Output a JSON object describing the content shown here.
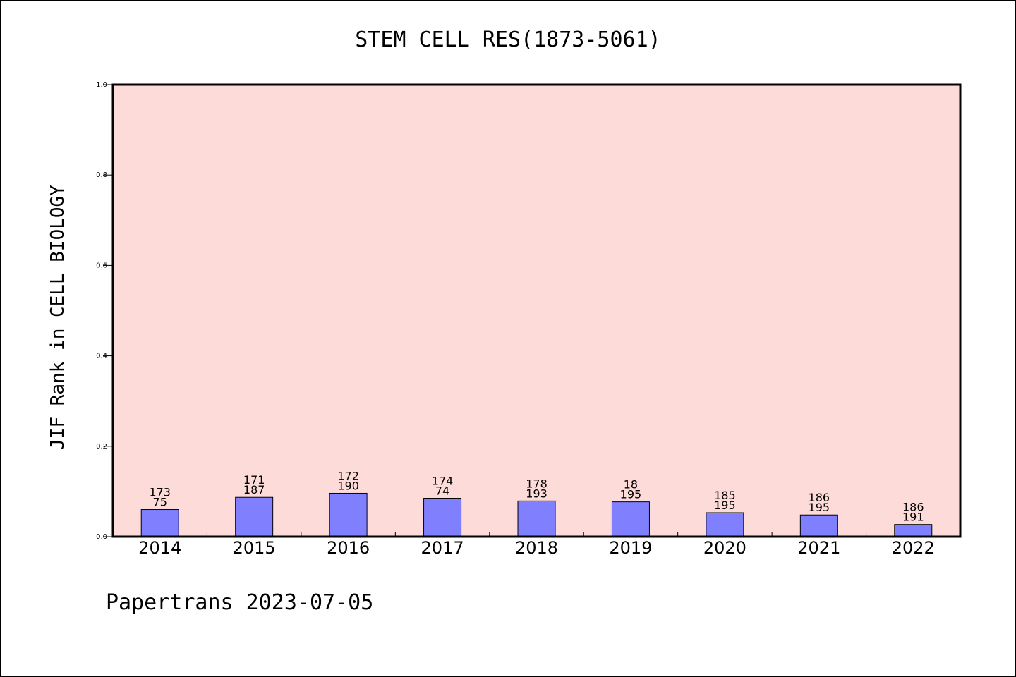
{
  "chart_data": {
    "type": "bar",
    "title": "STEM CELL RES(1873-5061)",
    "ylabel": "JIF Rank in CELL BIOLOGY",
    "xlabel": "",
    "ylim": [
      0,
      1.0
    ],
    "yticks": [
      "0.0",
      "0.2",
      "0.4",
      "0.6",
      "0.8",
      "1.0"
    ],
    "grid": false,
    "categories": [
      "2014",
      "2015",
      "2016",
      "2017",
      "2018",
      "2019",
      "2020",
      "2021",
      "2022"
    ],
    "values": [
      0.06,
      0.087,
      0.096,
      0.085,
      0.079,
      0.077,
      0.053,
      0.048,
      0.027
    ],
    "data_labels": [
      [
        "173",
        "75"
      ],
      [
        "171",
        "187"
      ],
      [
        "172",
        "190"
      ],
      [
        "174",
        "74"
      ],
      [
        "178",
        "193"
      ],
      [
        "18",
        "195"
      ],
      [
        "185",
        "195"
      ],
      [
        "186",
        "195"
      ],
      [
        "186",
        "191"
      ]
    ],
    "colors": {
      "plot_bg": "#fddbd8",
      "bar": "#8080ff"
    }
  },
  "footer": "Papertrans 2023-07-05"
}
